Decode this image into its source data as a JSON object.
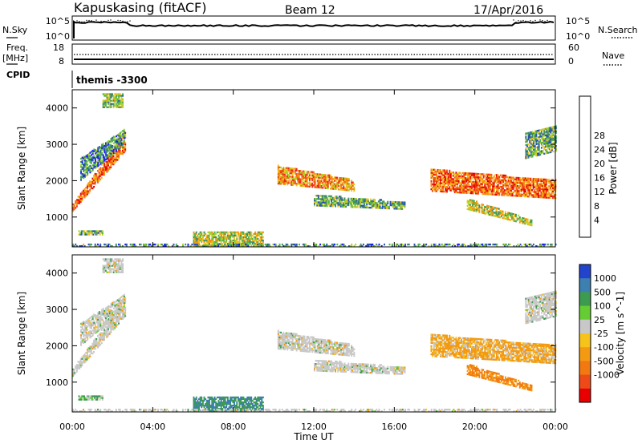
{
  "header": {
    "station": "Kapuskasing (fitACF)",
    "beam": "Beam 12",
    "date": "17/Apr/2016"
  },
  "top_panels": {
    "nsky_label": "N.Sky",
    "nsky_ticks": [
      "10^5",
      "10^0"
    ],
    "nsearch_label": "N.Search",
    "freq_label_1": "Freq.",
    "freq_label_2": "[MHz]",
    "freq_ticks": [
      "18",
      "8"
    ],
    "nave_ticks": [
      "60",
      "0"
    ],
    "nave_label": "Nave",
    "cpid_label": "CPID",
    "cpid_value": "themis -3300"
  },
  "x_axis": {
    "label": "Time UT",
    "ticks": [
      "00:00",
      "04:00",
      "08:00",
      "12:00",
      "16:00",
      "20:00",
      "00:00"
    ]
  },
  "power_panel": {
    "ylabel": "Slant Range [km]",
    "yticks": [
      "1000",
      "2000",
      "3000",
      "4000"
    ],
    "colorbar_label": "Power [dB]",
    "colorbar_ticks": [
      "4",
      "8",
      "12",
      "16",
      "20",
      "24",
      "28"
    ],
    "colors": [
      "#1a1aff",
      "#2a52b5",
      "#3f8a6a",
      "#4fb14f",
      "#a8d22a",
      "#f0c020",
      "#f59010",
      "#f26015",
      "#ef2a1c",
      "#e40000"
    ]
  },
  "velocity_panel": {
    "ylabel": "Slant Range [km]",
    "yticks": [
      "1000",
      "2000",
      "3000",
      "4000"
    ],
    "colorbar_label": "Velocity [m s^-1]",
    "colorbar_ticks": [
      "1000",
      "500",
      "100",
      "25",
      "-25",
      "-100",
      "-500",
      "-1000"
    ],
    "colors": [
      "#2244cc",
      "#3c7fb0",
      "#3d9b4f",
      "#66cc33",
      "#c8c8c8",
      "#f6c31c",
      "#f39a12",
      "#f27812",
      "#ee4a18",
      "#e80000"
    ]
  },
  "chart_data": {
    "type": "heatmap",
    "title": "Kapuskasing (fitACF)",
    "xlabel": "Time UT",
    "ylabel": "Slant Range [km]",
    "x_unit": "hours UT",
    "xlim": [
      0,
      24
    ],
    "ylim": [
      180,
      4500
    ],
    "regions": [
      {
        "name": "early-band",
        "t0": 0.0,
        "t1": 2.6,
        "r0": 1150,
        "r1": 1350,
        "r_end0": 2800,
        "r_end1": 3300,
        "power": 22,
        "velocity": 0
      },
      {
        "name": "early-upper",
        "t0": 0.4,
        "t1": 2.6,
        "r0": 2000,
        "r1": 2600,
        "r_end0": 3000,
        "r_end1": 3400,
        "power": 8,
        "velocity": 0
      },
      {
        "name": "top-blob",
        "t0": 1.5,
        "t1": 2.5,
        "r0": 4000,
        "r1": 4400,
        "r_end0": 4000,
        "r_end1": 4400,
        "power": 12,
        "velocity": 0
      },
      {
        "name": "low-range-early",
        "t0": 0.3,
        "t1": 1.5,
        "r0": 500,
        "r1": 600,
        "r_end0": 500,
        "r_end1": 600,
        "power": 10,
        "velocity": 100
      },
      {
        "name": "midday-low",
        "t0": 6.0,
        "t1": 9.5,
        "r0": 200,
        "r1": 600,
        "r_end0": 200,
        "r_end1": 600,
        "power": 14,
        "velocity": 300
      },
      {
        "name": "afternoon-band",
        "t0": 10.2,
        "t1": 14.0,
        "r0": 1900,
        "r1": 2400,
        "r_end0": 1700,
        "r_end1": 2000,
        "power": 20,
        "velocity": 0
      },
      {
        "name": "afternoon-tail",
        "t0": 12.0,
        "t1": 16.5,
        "r0": 1300,
        "r1": 1600,
        "r_end0": 1200,
        "r_end1": 1400,
        "power": 10,
        "velocity": 0
      },
      {
        "name": "evening-main",
        "t0": 17.8,
        "t1": 24.0,
        "r0": 1700,
        "r1": 2300,
        "r_end0": 1500,
        "r_end1": 2000,
        "power": 22,
        "velocity": -100
      },
      {
        "name": "evening-low",
        "t0": 19.6,
        "t1": 22.8,
        "r0": 1200,
        "r1": 1500,
        "r_end0": 750,
        "r_end1": 900,
        "power": 14,
        "velocity": -300
      },
      {
        "name": "late-upper",
        "t0": 22.5,
        "t1": 24.0,
        "r0": 2600,
        "r1": 3300,
        "r_end0": 2800,
        "r_end1": 3500,
        "power": 10,
        "velocity": 0
      },
      {
        "name": "ground-line",
        "t0": 0.0,
        "t1": 24.0,
        "r0": 180,
        "r1": 260,
        "r_end0": 180,
        "r_end1": 260,
        "power": 8,
        "velocity": 0
      }
    ],
    "power_range": [
      0,
      30
    ],
    "velocity_range": [
      -1000,
      1000
    ],
    "freq_mhz": 10.5,
    "nave": 2
  }
}
